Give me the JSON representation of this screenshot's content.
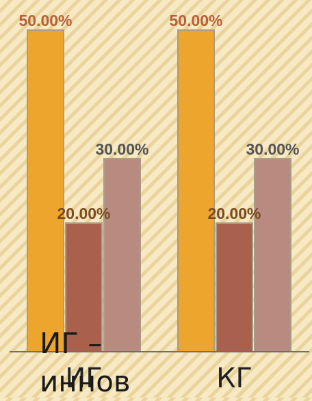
{
  "chart_data": {
    "type": "bar",
    "categories": [
      "ИГ",
      "КГ"
    ],
    "series": [
      {
        "values": [
          50,
          50
        ],
        "color": "#eea52e"
      },
      {
        "values": [
          20,
          20
        ],
        "color": "#a9614e"
      },
      {
        "values": [
          30,
          30
        ],
        "color": "#b98b80"
      }
    ],
    "data_labels": [
      [
        "50.00%",
        "50.00%"
      ],
      [
        "20.00%",
        "20.00%"
      ],
      [
        "30.00%",
        "30.00%"
      ]
    ],
    "label_colors": [
      "#b8603a",
      "#7a4a22",
      "#545454"
    ],
    "ylim": [
      0,
      50
    ],
    "grid": false,
    "legend": "none",
    "title": "",
    "xlabel": "",
    "ylabel": ""
  },
  "overlay": {
    "line1": "ИГ –",
    "line2": "иннов"
  }
}
